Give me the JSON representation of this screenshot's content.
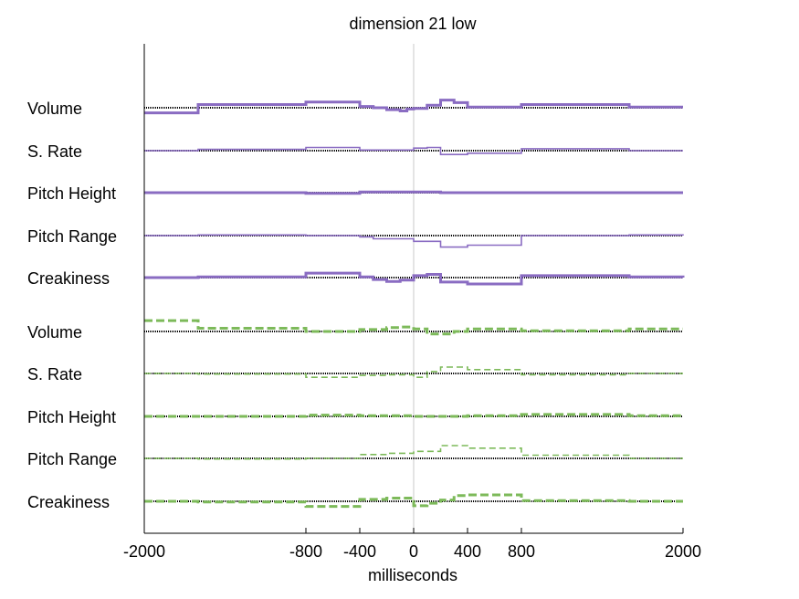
{
  "chart_data": {
    "type": "line",
    "title": "dimension 21 low",
    "xlabel": "milliseconds",
    "xlim": [
      -2000,
      2000
    ],
    "x_ticks": [
      "-2000",
      "-800",
      "-400",
      "0",
      "400",
      "800",
      "2000"
    ],
    "x_tick_values": [
      -2000,
      -800,
      -400,
      0,
      400,
      800,
      2000
    ],
    "grid": false,
    "colors": {
      "purple": "#8a6cc2",
      "green": "#7dba5a",
      "baseline": "#000000",
      "zero_line": "#c8c8c8"
    },
    "series": [
      {
        "label": "Volume",
        "group": "purple",
        "style": "thick",
        "steps": [
          [
            -2000,
            -0.4
          ],
          [
            -1600,
            0.25
          ],
          [
            -800,
            0.45
          ],
          [
            -400,
            0.1
          ],
          [
            -300,
            0.0
          ],
          [
            -200,
            -0.15
          ],
          [
            -100,
            -0.25
          ],
          [
            -50,
            -0.1
          ],
          [
            0,
            -0.05
          ],
          [
            100,
            0.2
          ],
          [
            200,
            0.6
          ],
          [
            300,
            0.4
          ],
          [
            400,
            0.05
          ],
          [
            800,
            0.25
          ],
          [
            1600,
            0.05
          ],
          [
            2000,
            0.05
          ]
        ]
      },
      {
        "label": "S. Rate",
        "group": "purple",
        "style": "thin",
        "steps": [
          [
            -2000,
            0
          ],
          [
            -1600,
            0.1
          ],
          [
            -800,
            0.25
          ],
          [
            -400,
            0.05
          ],
          [
            0,
            0.2
          ],
          [
            100,
            0.25
          ],
          [
            200,
            -0.3
          ],
          [
            400,
            -0.2
          ],
          [
            800,
            0.15
          ],
          [
            1600,
            0
          ],
          [
            2000,
            0
          ]
        ]
      },
      {
        "label": "Pitch Height",
        "group": "purple",
        "style": "thick",
        "steps": [
          [
            -2000,
            0
          ],
          [
            -800,
            -0.05
          ],
          [
            -400,
            0.05
          ],
          [
            0,
            0.05
          ],
          [
            200,
            0
          ],
          [
            400,
            0
          ],
          [
            2000,
            0
          ]
        ]
      },
      {
        "label": "Pitch Range",
        "group": "purple",
        "style": "thin",
        "steps": [
          [
            -2000,
            0
          ],
          [
            -1600,
            0.05
          ],
          [
            -800,
            0
          ],
          [
            -400,
            -0.1
          ],
          [
            -300,
            -0.25
          ],
          [
            0,
            -0.45
          ],
          [
            200,
            -0.9
          ],
          [
            400,
            -0.75
          ],
          [
            800,
            0
          ],
          [
            1600,
            0.05
          ],
          [
            2000,
            0
          ]
        ]
      },
      {
        "label": "Creakiness",
        "group": "purple",
        "style": "thick",
        "steps": [
          [
            -2000,
            0
          ],
          [
            -1600,
            0.05
          ],
          [
            -800,
            0.35
          ],
          [
            -400,
            0.05
          ],
          [
            -300,
            -0.15
          ],
          [
            -200,
            -0.3
          ],
          [
            -100,
            -0.2
          ],
          [
            0,
            0.15
          ],
          [
            100,
            0.25
          ],
          [
            200,
            -0.35
          ],
          [
            400,
            -0.5
          ],
          [
            800,
            0.15
          ],
          [
            1600,
            0.05
          ],
          [
            2000,
            0
          ]
        ]
      },
      {
        "label": "Volume",
        "group": "green",
        "style": "thick",
        "steps": [
          [
            -2000,
            0.85
          ],
          [
            -1600,
            0.25
          ],
          [
            -800,
            0
          ],
          [
            -400,
            0.15
          ],
          [
            -200,
            0.3
          ],
          [
            -100,
            0.35
          ],
          [
            0,
            0.2
          ],
          [
            100,
            -0.2
          ],
          [
            300,
            0
          ],
          [
            400,
            0.2
          ],
          [
            800,
            0.05
          ],
          [
            1600,
            0.2
          ],
          [
            2000,
            0.2
          ]
        ]
      },
      {
        "label": "S. Rate",
        "group": "green",
        "style": "thin",
        "steps": [
          [
            -2000,
            0
          ],
          [
            -1600,
            -0.05
          ],
          [
            -800,
            -0.3
          ],
          [
            -400,
            -0.15
          ],
          [
            -200,
            -0.1
          ],
          [
            0,
            -0.3
          ],
          [
            100,
            0.15
          ],
          [
            200,
            0.5
          ],
          [
            400,
            0.3
          ],
          [
            800,
            -0.1
          ],
          [
            1600,
            0
          ],
          [
            2000,
            0
          ]
        ]
      },
      {
        "label": "Pitch Height",
        "group": "green",
        "style": "thick",
        "steps": [
          [
            -2000,
            0
          ],
          [
            -800,
            0.1
          ],
          [
            -400,
            0.05
          ],
          [
            0,
            0
          ],
          [
            400,
            0.05
          ],
          [
            800,
            0.15
          ],
          [
            1600,
            0.05
          ],
          [
            2000,
            0
          ]
        ]
      },
      {
        "label": "Pitch Range",
        "group": "green",
        "style": "thin",
        "steps": [
          [
            -2000,
            0
          ],
          [
            -1600,
            -0.05
          ],
          [
            -800,
            0
          ],
          [
            -400,
            0.3
          ],
          [
            -200,
            0.4
          ],
          [
            0,
            0.55
          ],
          [
            200,
            1.0
          ],
          [
            400,
            0.8
          ],
          [
            800,
            0.25
          ],
          [
            1600,
            0
          ],
          [
            2000,
            0
          ]
        ]
      },
      {
        "label": "Creakiness",
        "group": "green",
        "style": "thick",
        "steps": [
          [
            -2000,
            0
          ],
          [
            -1600,
            -0.05
          ],
          [
            -800,
            -0.4
          ],
          [
            -400,
            0.15
          ],
          [
            -200,
            0.25
          ],
          [
            0,
            -0.35
          ],
          [
            100,
            -0.15
          ],
          [
            200,
            0.1
          ],
          [
            300,
            0.45
          ],
          [
            400,
            0.5
          ],
          [
            800,
            0.05
          ],
          [
            1600,
            0
          ],
          [
            2000,
            0
          ]
        ]
      }
    ]
  }
}
